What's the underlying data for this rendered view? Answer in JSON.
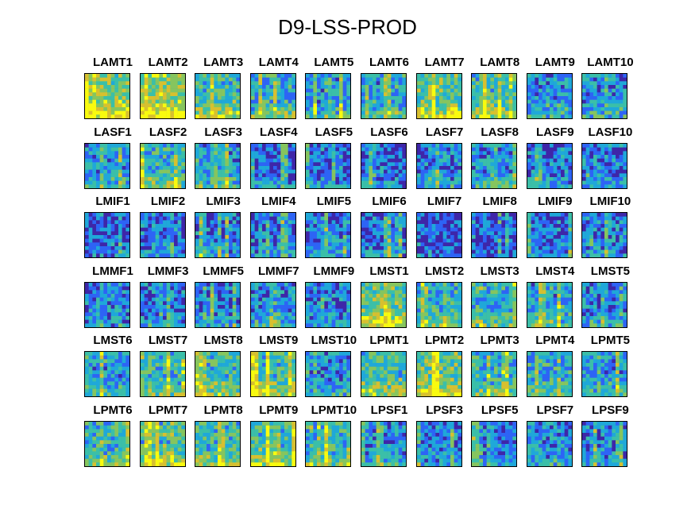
{
  "chart_data": {
    "type": "heatmap",
    "title": "D9-LSS-PROD",
    "grid": {
      "rows": 6,
      "cols": 10
    },
    "colormap": [
      "#3e26a8",
      "#2d64f5",
      "#1fa8d9",
      "#3bbfa8",
      "#86c55e",
      "#d7c02f",
      "#f9fb0e"
    ],
    "panels": [
      {
        "label": "LAMT1",
        "intensity": 0.9
      },
      {
        "label": "LAMT2",
        "intensity": 0.95
      },
      {
        "label": "LAMT3",
        "intensity": 0.7
      },
      {
        "label": "LAMT4",
        "intensity": 0.55
      },
      {
        "label": "LAMT5",
        "intensity": 0.5
      },
      {
        "label": "LAMT6",
        "intensity": 0.5
      },
      {
        "label": "LAMT7",
        "intensity": 0.75
      },
      {
        "label": "LAMT8",
        "intensity": 0.65
      },
      {
        "label": "LAMT9",
        "intensity": 0.45
      },
      {
        "label": "LAMT10",
        "intensity": 0.45
      },
      {
        "label": "LASF1",
        "intensity": 0.45
      },
      {
        "label": "LASF2",
        "intensity": 0.6
      },
      {
        "label": "LASF3",
        "intensity": 0.5
      },
      {
        "label": "LASF4",
        "intensity": 0.3
      },
      {
        "label": "LASF5",
        "intensity": 0.3
      },
      {
        "label": "LASF6",
        "intensity": 0.3
      },
      {
        "label": "LASF7",
        "intensity": 0.4
      },
      {
        "label": "LASF8",
        "intensity": 0.45
      },
      {
        "label": "LASF9",
        "intensity": 0.35
      },
      {
        "label": "LASF10",
        "intensity": 0.35
      },
      {
        "label": "LMIF1",
        "intensity": 0.3
      },
      {
        "label": "LMIF2",
        "intensity": 0.3
      },
      {
        "label": "LMIF3",
        "intensity": 0.35
      },
      {
        "label": "LMIF4",
        "intensity": 0.35
      },
      {
        "label": "LMIF5",
        "intensity": 0.35
      },
      {
        "label": "LMIF6",
        "intensity": 0.3
      },
      {
        "label": "LMIF7",
        "intensity": 0.2
      },
      {
        "label": "LMIF8",
        "intensity": 0.2
      },
      {
        "label": "LMIF9",
        "intensity": 0.3
      },
      {
        "label": "LMIF10",
        "intensity": 0.35
      },
      {
        "label": "LMMF1",
        "intensity": 0.35
      },
      {
        "label": "LMMF3",
        "intensity": 0.35
      },
      {
        "label": "LMMF5",
        "intensity": 0.35
      },
      {
        "label": "LMMF7",
        "intensity": 0.4
      },
      {
        "label": "LMMF9",
        "intensity": 0.35
      },
      {
        "label": "LMST1",
        "intensity": 0.8
      },
      {
        "label": "LMST2",
        "intensity": 0.6
      },
      {
        "label": "LMST3",
        "intensity": 0.55
      },
      {
        "label": "LMST4",
        "intensity": 0.5
      },
      {
        "label": "LMST5",
        "intensity": 0.4
      },
      {
        "label": "LMST6",
        "intensity": 0.5
      },
      {
        "label": "LMST7",
        "intensity": 0.6
      },
      {
        "label": "LMST8",
        "intensity": 0.65
      },
      {
        "label": "LMST9",
        "intensity": 0.7
      },
      {
        "label": "LMST10",
        "intensity": 0.45
      },
      {
        "label": "LPMT1",
        "intensity": 0.7
      },
      {
        "label": "LPMT2",
        "intensity": 0.8
      },
      {
        "label": "LPMT3",
        "intensity": 0.6
      },
      {
        "label": "LPMT4",
        "intensity": 0.55
      },
      {
        "label": "LPMT5",
        "intensity": 0.5
      },
      {
        "label": "LPMT6",
        "intensity": 0.6
      },
      {
        "label": "LPMT7",
        "intensity": 0.7
      },
      {
        "label": "LPMT8",
        "intensity": 0.65
      },
      {
        "label": "LPMT9",
        "intensity": 0.7
      },
      {
        "label": "LPMT10",
        "intensity": 0.55
      },
      {
        "label": "LPSF1",
        "intensity": 0.4
      },
      {
        "label": "LPSF3",
        "intensity": 0.35
      },
      {
        "label": "LPSF5",
        "intensity": 0.35
      },
      {
        "label": "LPSF7",
        "intensity": 0.4
      },
      {
        "label": "LPSF9",
        "intensity": 0.4
      }
    ]
  }
}
